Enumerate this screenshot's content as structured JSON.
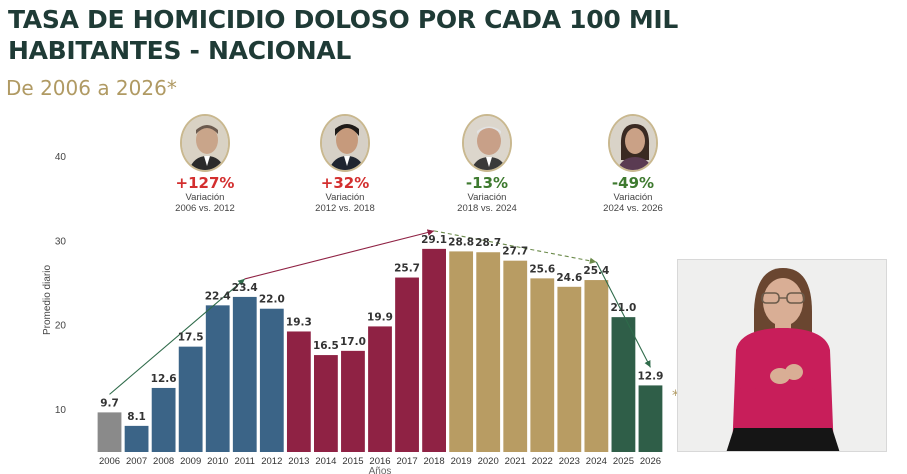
{
  "header": {
    "title": "TASA DE HOMICIDIO DOLOSO POR CADA 100 MIL HABITANTES - NACIONAL",
    "subtitle": "De 2006 a 2026*"
  },
  "presidents": [
    {
      "pct": "+127%",
      "label": "Variación",
      "range": "2006 vs. 2012",
      "trend": "up"
    },
    {
      "pct": "+32%",
      "label": "Variación",
      "range": "2012 vs. 2018",
      "trend": "up"
    },
    {
      "pct": "-13%",
      "label": "Variación",
      "range": "2018 vs. 2024",
      "trend": "down"
    },
    {
      "pct": "-49%",
      "label": "Variación",
      "range": "2024 vs. 2026",
      "trend": "down"
    }
  ],
  "chart_data": {
    "type": "bar",
    "categories": [
      "2006",
      "2007",
      "2008",
      "2009",
      "2010",
      "2011",
      "2012",
      "2013",
      "2014",
      "2015",
      "2016",
      "2017",
      "2018",
      "2019",
      "2020",
      "2021",
      "2022",
      "2023",
      "2024",
      "2025",
      "2026"
    ],
    "values": [
      9.7,
      8.1,
      12.6,
      17.5,
      22.4,
      23.4,
      22.0,
      19.3,
      16.5,
      17.0,
      19.9,
      25.7,
      29.1,
      28.8,
      28.7,
      27.7,
      25.6,
      24.6,
      25.4,
      21.0,
      12.9
    ],
    "value_labels": [
      "9.7",
      "8.1",
      "12.6",
      "17.5",
      "22.4",
      "23.4",
      "22.0",
      "19.3",
      "16.5",
      "17.0",
      "19.9",
      "25.7",
      "29.1",
      "28.8",
      "28.7",
      "27.7",
      "25.6",
      "24.6",
      "25.4",
      "21.0",
      "12.9"
    ],
    "bar_colors": [
      "#8a8a8a",
      "#3b6487",
      "#3b6487",
      "#3b6487",
      "#3b6487",
      "#3b6487",
      "#3b6487",
      "#8f2244",
      "#8f2244",
      "#8f2244",
      "#8f2244",
      "#8f2244",
      "#8f2244",
      "#b89c63",
      "#b89c63",
      "#b89c63",
      "#b89c63",
      "#b89c63",
      "#b89c63",
      "#2f5e48",
      "#2f5e48"
    ],
    "ylabel": "Promedio diario",
    "xlabel": "Años",
    "yticks": [
      "10",
      "20",
      "30",
      "40"
    ],
    "ytick_values": [
      10,
      20,
      30,
      40
    ],
    "ylim": [
      5,
      40
    ],
    "grid": false,
    "trend_arrows": [
      {
        "from_year": "2006",
        "from_value": 9.7,
        "to_year": "2011",
        "to_value": 23.4,
        "color": "#2f6b4a"
      },
      {
        "from_year": "2011",
        "from_value": 23.4,
        "to_year": "2018",
        "to_value": 29.1,
        "color": "#8f2244"
      },
      {
        "from_year": "2018",
        "from_value": 29.1,
        "to_year": "2024",
        "to_value": 25.4,
        "color": "#6b8a4a"
      },
      {
        "from_year": "2024",
        "from_value": 25.4,
        "to_year": "2026",
        "to_value": 12.9,
        "color": "#2f6b4a"
      }
    ],
    "footnote_mark": "*"
  }
}
